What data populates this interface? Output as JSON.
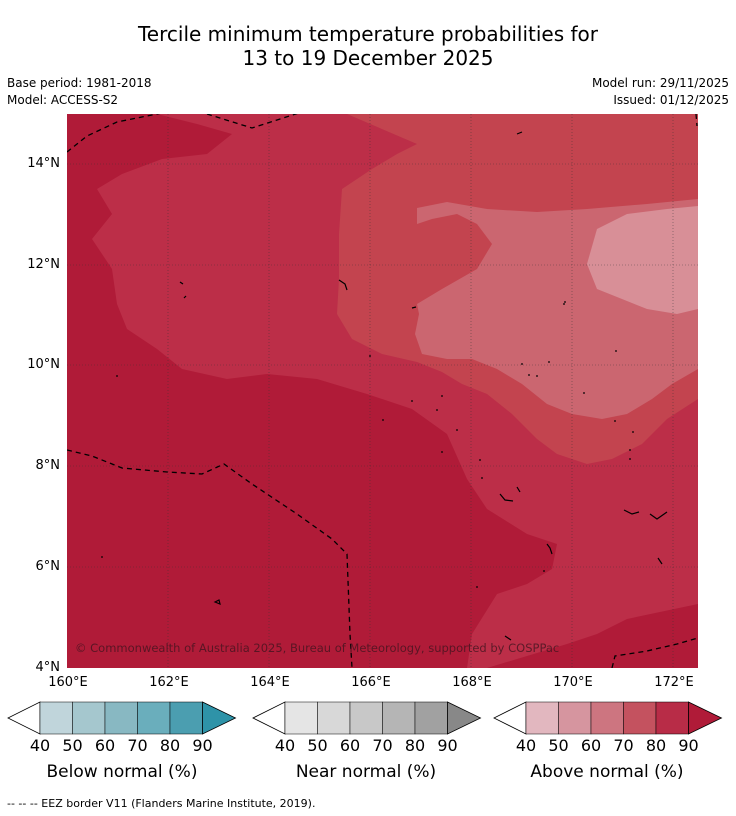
{
  "title_line1": "Tercile minimum temperature probabilities for",
  "title_line2": "13 to 19 December 2025",
  "base_period": "Base period: 1981-2018",
  "model": "Model: ACCESS-S2",
  "model_run": "Model run: 29/11/2025",
  "issued": "Issued: 01/12/2025",
  "copyright": "© Commonwealth of Australia 2025, Bureau of Meteorology, supported by COSPPac",
  "lat_ticks": [
    "14°N",
    "12°N",
    "10°N",
    "8°N",
    "6°N",
    "4°N"
  ],
  "lon_ticks": [
    "160°E",
    "162°E",
    "164°E",
    "166°E",
    "168°E",
    "170°E",
    "172°E"
  ],
  "colorbars": [
    {
      "title": "Below normal (%)",
      "ticks": [
        "40",
        "50",
        "60",
        "70",
        "80",
        "90"
      ],
      "colors": [
        "#ffffff",
        "#c0d5db",
        "#a5c7ce",
        "#88b8c2",
        "#6aaebc",
        "#4b9eb0",
        "#2e93a8"
      ]
    },
    {
      "title": "Near normal (%)",
      "ticks": [
        "40",
        "50",
        "60",
        "70",
        "80",
        "90"
      ],
      "colors": [
        "#ffffff",
        "#e5e5e5",
        "#d8d8d8",
        "#c8c8c8",
        "#b5b5b5",
        "#a1a1a1",
        "#888888"
      ]
    },
    {
      "title": "Above normal (%)",
      "ticks": [
        "40",
        "50",
        "60",
        "70",
        "80",
        "90"
      ],
      "colors": [
        "#ffffff",
        "#e2b7bf",
        "#d6959f",
        "#cd7580",
        "#c4525f",
        "#b82c47",
        "#b01b38"
      ]
    }
  ],
  "footer": "--  --  -- EEZ border V11 (Flanders Marine Institute, 2019).",
  "colors": {
    "above_80_90": "#b01b38",
    "above_70_80": "#bc2e48",
    "above_60_70": "#c3444f",
    "above_50_60": "#cb6670",
    "above_40_50": "#d88f97"
  }
}
